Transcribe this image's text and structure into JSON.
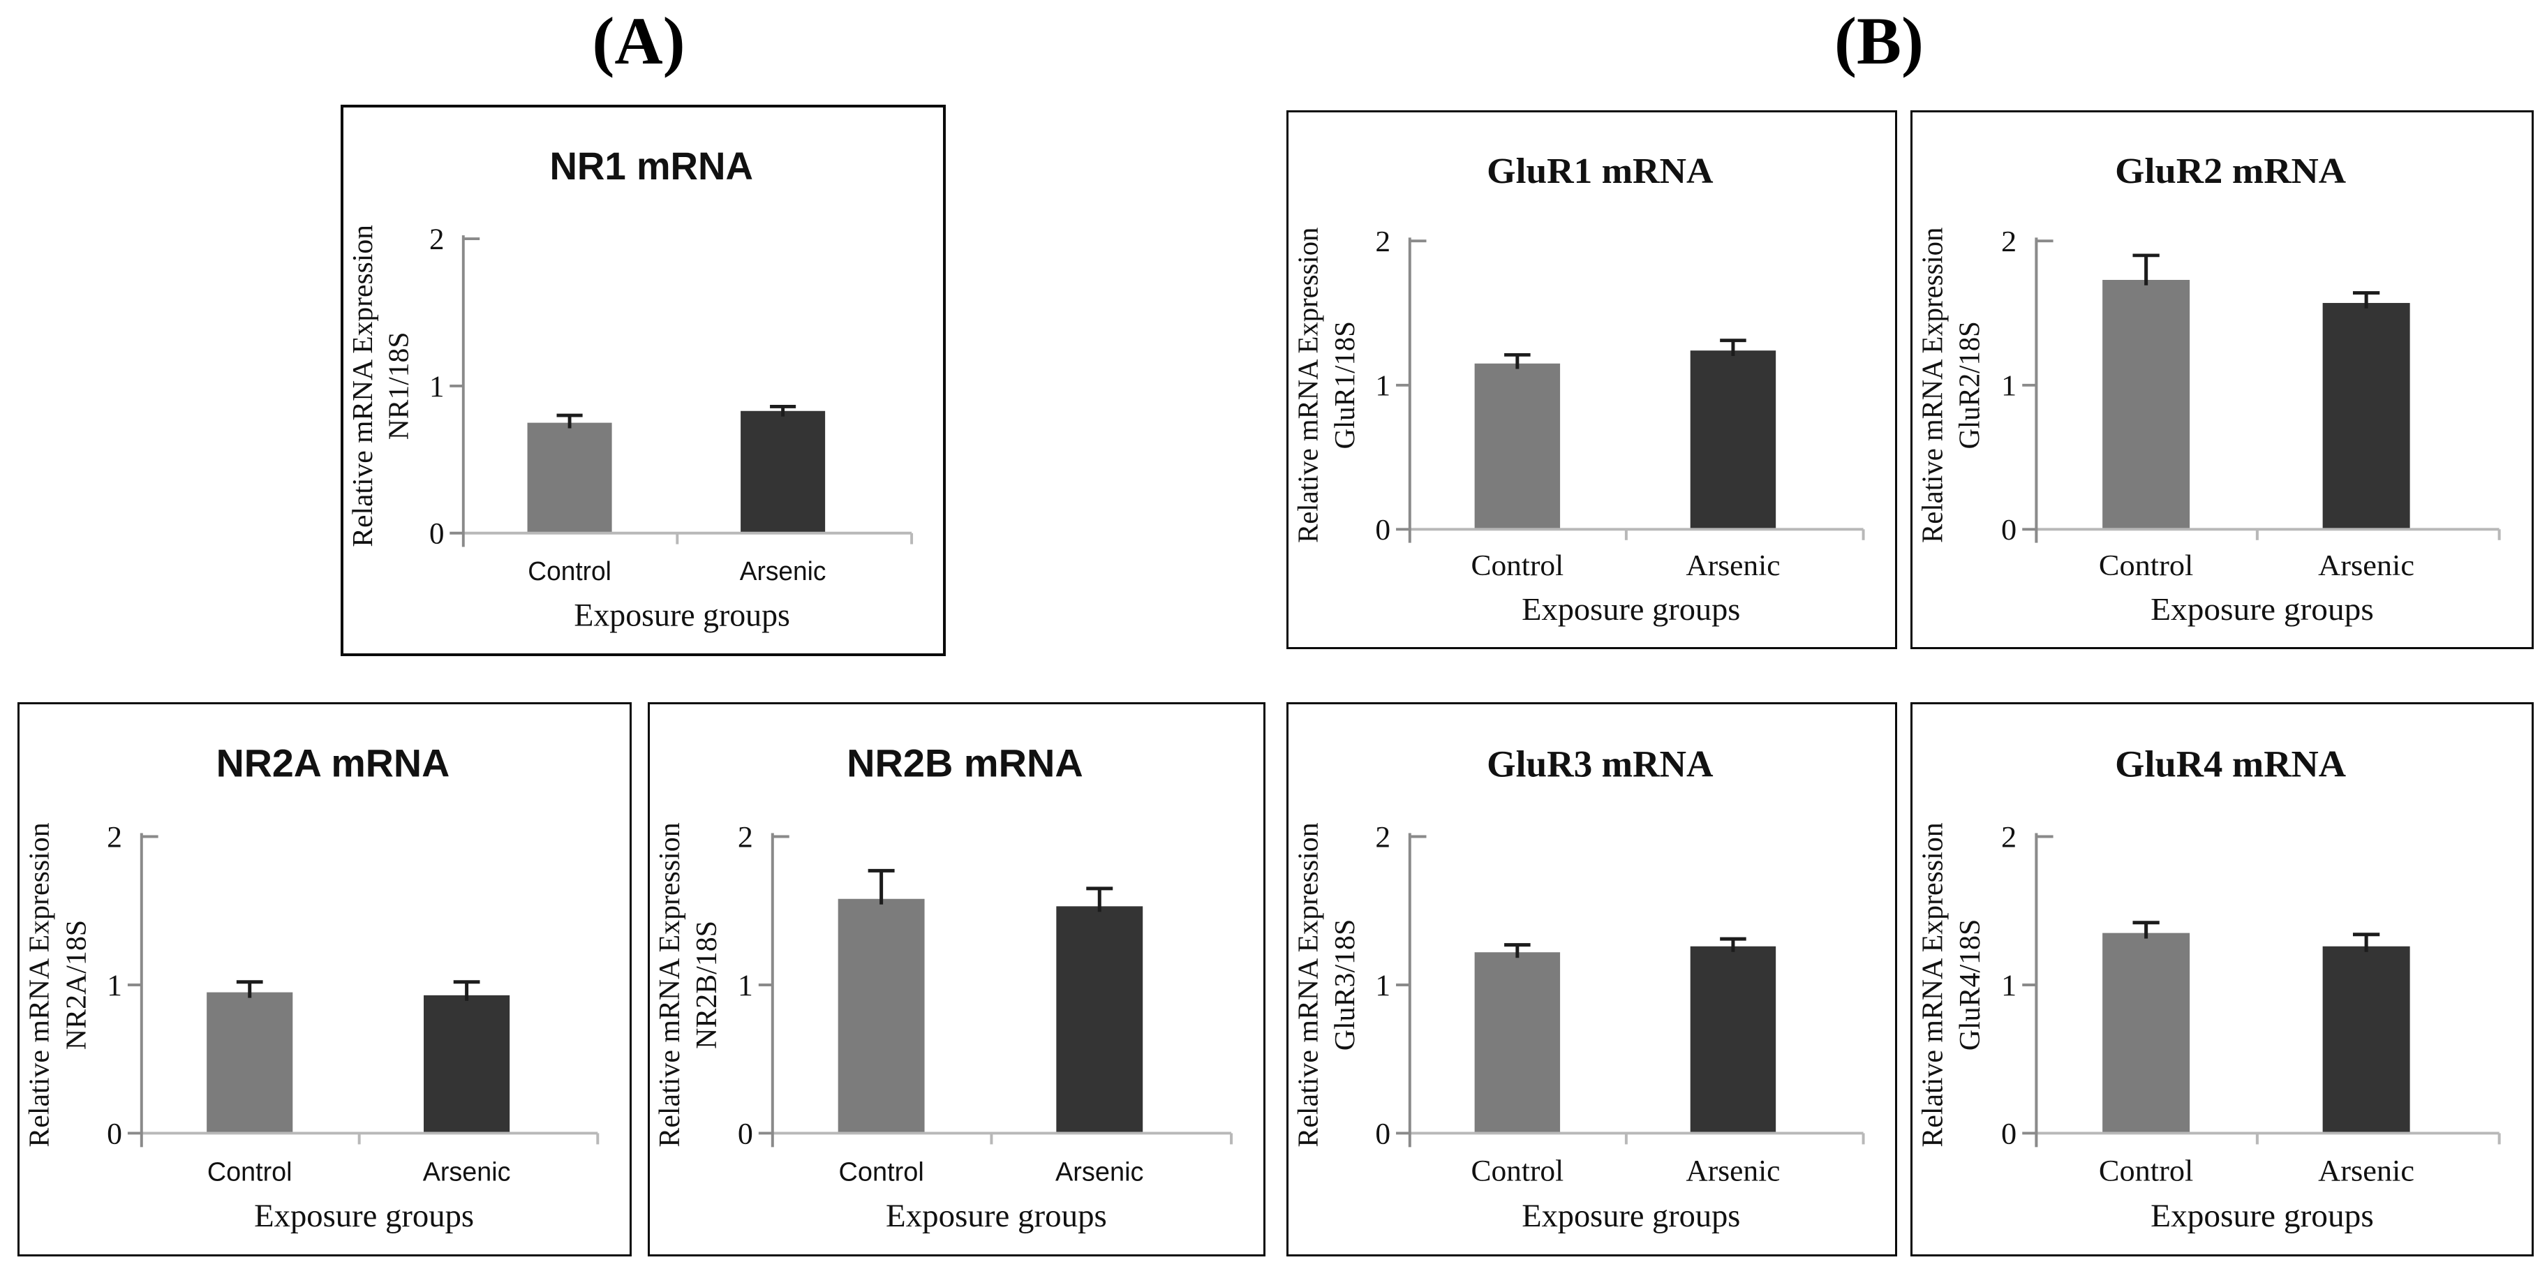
{
  "panel_labels": [
    {
      "text": "(A)"
    },
    {
      "text": "(B)"
    }
  ],
  "colors": {
    "control_bar": "#7c7c7c",
    "arsenic_bar": "#343434",
    "error_bar": "#1c1c1c",
    "y_axis_line": "#8a8a8a",
    "x_axis_line": "#b8b8b8",
    "text": "#111111",
    "border": "#0b0b0b",
    "background": "#ffffff"
  },
  "chart_data": [
    {
      "id": "nr1",
      "type": "bar",
      "title": "NR1 mRNA",
      "ylabel_line1": "Relative mRNA Expression",
      "ylabel_line2": "NR1/18S",
      "xlabel": "Exposure groups",
      "categories": [
        "Control",
        "Arsenic"
      ],
      "values": [
        0.75,
        0.83
      ],
      "errors": [
        0.05,
        0.03
      ],
      "y_ticks": [
        0,
        1,
        2
      ],
      "ylim": [
        0,
        2
      ],
      "legend": "none",
      "grid": "off"
    },
    {
      "id": "glur1",
      "type": "bar",
      "title": "GluR1 mRNA",
      "ylabel_line1": "Relative mRNA Expression",
      "ylabel_line2": "GluR1/18S",
      "xlabel": "Exposure groups",
      "categories": [
        "Control",
        "Arsenic"
      ],
      "values": [
        1.15,
        1.24
      ],
      "errors": [
        0.06,
        0.07
      ],
      "y_ticks": [
        0,
        1,
        2
      ],
      "ylim": [
        0,
        2
      ],
      "legend": "none",
      "grid": "off"
    },
    {
      "id": "glur2",
      "type": "bar",
      "title": "GluR2 mRNA",
      "ylabel_line1": "Relative mRNA Expression",
      "ylabel_line2": "GluR2/18S",
      "xlabel": "Exposure groups",
      "categories": [
        "Control",
        "Arsenic"
      ],
      "values": [
        1.73,
        1.57
      ],
      "errors": [
        0.17,
        0.07
      ],
      "y_ticks": [
        0,
        1,
        2
      ],
      "ylim": [
        0,
        2
      ],
      "legend": "none",
      "grid": "off"
    },
    {
      "id": "nr2a",
      "type": "bar",
      "title": "NR2A mRNA",
      "ylabel_line1": "Relative mRNA Expression",
      "ylabel_line2": "NR2A/18S",
      "xlabel": "Exposure groups",
      "categories": [
        "Control",
        "Arsenic"
      ],
      "values": [
        0.95,
        0.93
      ],
      "errors": [
        0.07,
        0.09
      ],
      "y_ticks": [
        0,
        1,
        2
      ],
      "ylim": [
        0,
        2
      ],
      "legend": "none",
      "grid": "off"
    },
    {
      "id": "nr2b",
      "type": "bar",
      "title": "NR2B mRNA",
      "ylabel_line1": "Relative mRNA Expression",
      "ylabel_line2": "NR2B/18S",
      "xlabel": "Exposure groups",
      "categories": [
        "Control",
        "Arsenic"
      ],
      "values": [
        1.58,
        1.53
      ],
      "errors": [
        0.19,
        0.12
      ],
      "y_ticks": [
        0,
        1,
        2
      ],
      "ylim": [
        0,
        2
      ],
      "legend": "none",
      "grid": "off"
    },
    {
      "id": "glur3",
      "type": "bar",
      "title": "GluR3 mRNA",
      "ylabel_line1": "Relative mRNA Expression",
      "ylabel_line2": "GluR3/18S",
      "xlabel": "Exposure groups",
      "categories": [
        "Control",
        "Arsenic"
      ],
      "values": [
        1.22,
        1.26
      ],
      "errors": [
        0.05,
        0.05
      ],
      "y_ticks": [
        0,
        1,
        2
      ],
      "ylim": [
        0,
        2
      ],
      "legend": "none",
      "grid": "off"
    },
    {
      "id": "glur4",
      "type": "bar",
      "title": "GluR4 mRNA",
      "ylabel_line1": "Relative mRNA Expression",
      "ylabel_line2": "GluR4/18S",
      "xlabel": "Exposure groups",
      "categories": [
        "Control",
        "Arsenic"
      ],
      "values": [
        1.35,
        1.26
      ],
      "errors": [
        0.07,
        0.08
      ],
      "y_ticks": [
        0,
        1,
        2
      ],
      "ylim": [
        0,
        2
      ],
      "legend": "none",
      "grid": "off"
    }
  ]
}
